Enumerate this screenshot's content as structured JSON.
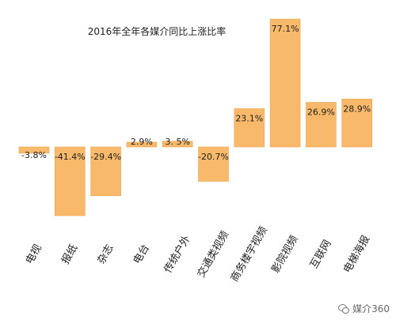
{
  "chart_data": {
    "type": "bar",
    "title": "2016年全年各媒介同比上涨比率",
    "categories": [
      "电视",
      "报纸",
      "杂志",
      "电台",
      "传统户外",
      "交通类视频",
      "商务楼宇视频",
      "影院视频",
      "互联网",
      "电梯海报"
    ],
    "values": [
      -3.8,
      -41.4,
      -29.4,
      2.9,
      3.5,
      -20.7,
      23.1,
      77.1,
      26.9,
      28.9
    ],
    "data_labels": [
      "-3.8%",
      "-41.4%",
      "-29.4%",
      "2.9%",
      "3. 5%",
      "-20.7%",
      "23.1%",
      "77.1%",
      "26.9%",
      "28.9%"
    ],
    "xlabel": "",
    "ylabel": "",
    "ylim": [
      -45,
      85
    ],
    "grid": false,
    "colors": {
      "bar": "#F8B96B",
      "bar_edge": "#F1A64F",
      "text": "#222222"
    }
  },
  "watermark": {
    "text": "媒介360"
  }
}
